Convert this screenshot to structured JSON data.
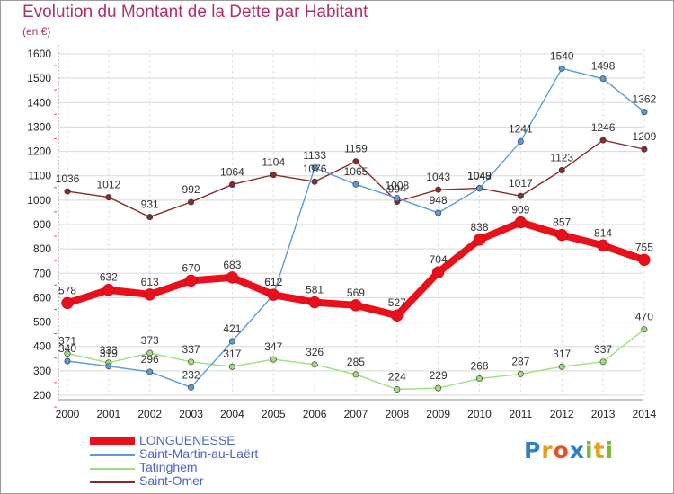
{
  "chart_data": {
    "type": "line",
    "title": "Evolution du Montant de la Dette par Habitant",
    "subtitle": "(en €)",
    "xlabel": "",
    "ylabel": "",
    "ylim": [
      200,
      1600
    ],
    "yticks": [
      "200",
      "300",
      "400",
      "500",
      "600",
      "700",
      "800",
      "900",
      "1000",
      "1100",
      "1200",
      "1300",
      "1400",
      "1500",
      "1600"
    ],
    "categories": [
      "2000",
      "2001",
      "2002",
      "2003",
      "2004",
      "2005",
      "2006",
      "2007",
      "2008",
      "2009",
      "2010",
      "2011",
      "2012",
      "2013",
      "2014"
    ],
    "grid": true,
    "legend": "bottom-left",
    "series": [
      {
        "name": "LONGUENESSE",
        "color": "#e8101a",
        "values": [
          578,
          632,
          613,
          670,
          683,
          612,
          581,
          569,
          527,
          704,
          838,
          909,
          857,
          814,
          755
        ]
      },
      {
        "name": "Saint-Martin-au-Laërt",
        "color": "#5b9bd5",
        "values": [
          340,
          319,
          296,
          232,
          421,
          612,
          1133,
          1065,
          1008,
          948,
          1048,
          1241,
          1540,
          1498,
          1362
        ]
      },
      {
        "name": "Tatinghem",
        "color": "#9be07a",
        "values": [
          371,
          333,
          373,
          337,
          317,
          347,
          326,
          285,
          224,
          229,
          268,
          287,
          317,
          337,
          470
        ]
      },
      {
        "name": "Saint-Omer",
        "color": "#8a2a2a",
        "values": [
          1036,
          1012,
          931,
          992,
          1064,
          1104,
          1076,
          1159,
          994,
          1043,
          1049,
          1017,
          1123,
          1246,
          1209
        ]
      }
    ]
  },
  "legend": {
    "items": [
      {
        "label": "LONGUENESSE"
      },
      {
        "label": "Saint-Martin-au-Laërt"
      },
      {
        "label": "Tatinghem"
      },
      {
        "label": "Saint-Omer"
      }
    ]
  },
  "logo": {
    "letters": [
      "P",
      "r",
      "o",
      "x",
      "i",
      "t",
      "i"
    ],
    "colors": [
      "#2e7fc4",
      "#e0a020",
      "#e8502a",
      "#2e7fc4",
      "#7ab83a",
      "#e0a020",
      "#7ab83a"
    ]
  }
}
